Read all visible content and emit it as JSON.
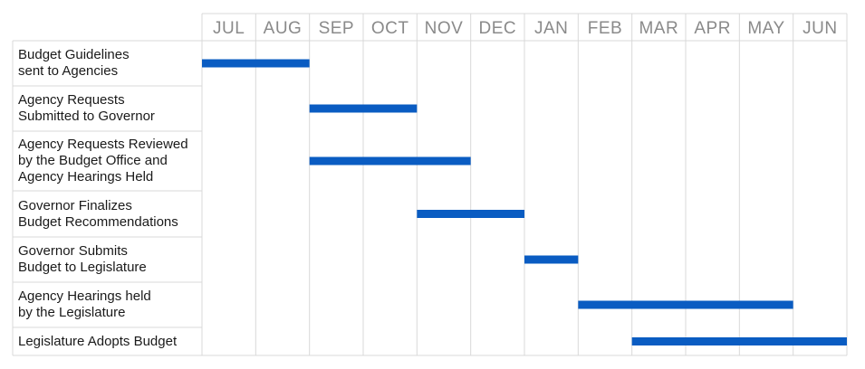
{
  "chart_data": {
    "type": "gantt",
    "bar_color": "#0a5cc2",
    "grid_color": "#d9d9d9",
    "months": [
      "JUL",
      "AUG",
      "SEP",
      "OCT",
      "NOV",
      "DEC",
      "JAN",
      "FEB",
      "MAR",
      "APR",
      "MAY",
      "JUN"
    ],
    "tasks": [
      {
        "label": "Budget Guidelines\nsent to Agencies",
        "start": "JUL",
        "end": "AUG"
      },
      {
        "label": "Agency Requests\nSubmitted to Governor",
        "start": "SEP",
        "end": "OCT"
      },
      {
        "label": "Agency Requests Reviewed\nby the Budget Office and\nAgency Hearings Held",
        "start": "SEP",
        "end": "NOV"
      },
      {
        "label": "Governor Finalizes\nBudget Recommendations",
        "start": "NOV",
        "end": "DEC"
      },
      {
        "label": "Governor Submits\nBudget to Legislature",
        "start": "JAN",
        "end": "JAN"
      },
      {
        "label": "Agency Hearings held\nby the Legislature",
        "start": "FEB",
        "end": "MAY"
      },
      {
        "label": "Legislature Adopts Budget",
        "start": "MAR",
        "end": "JUN"
      }
    ]
  }
}
